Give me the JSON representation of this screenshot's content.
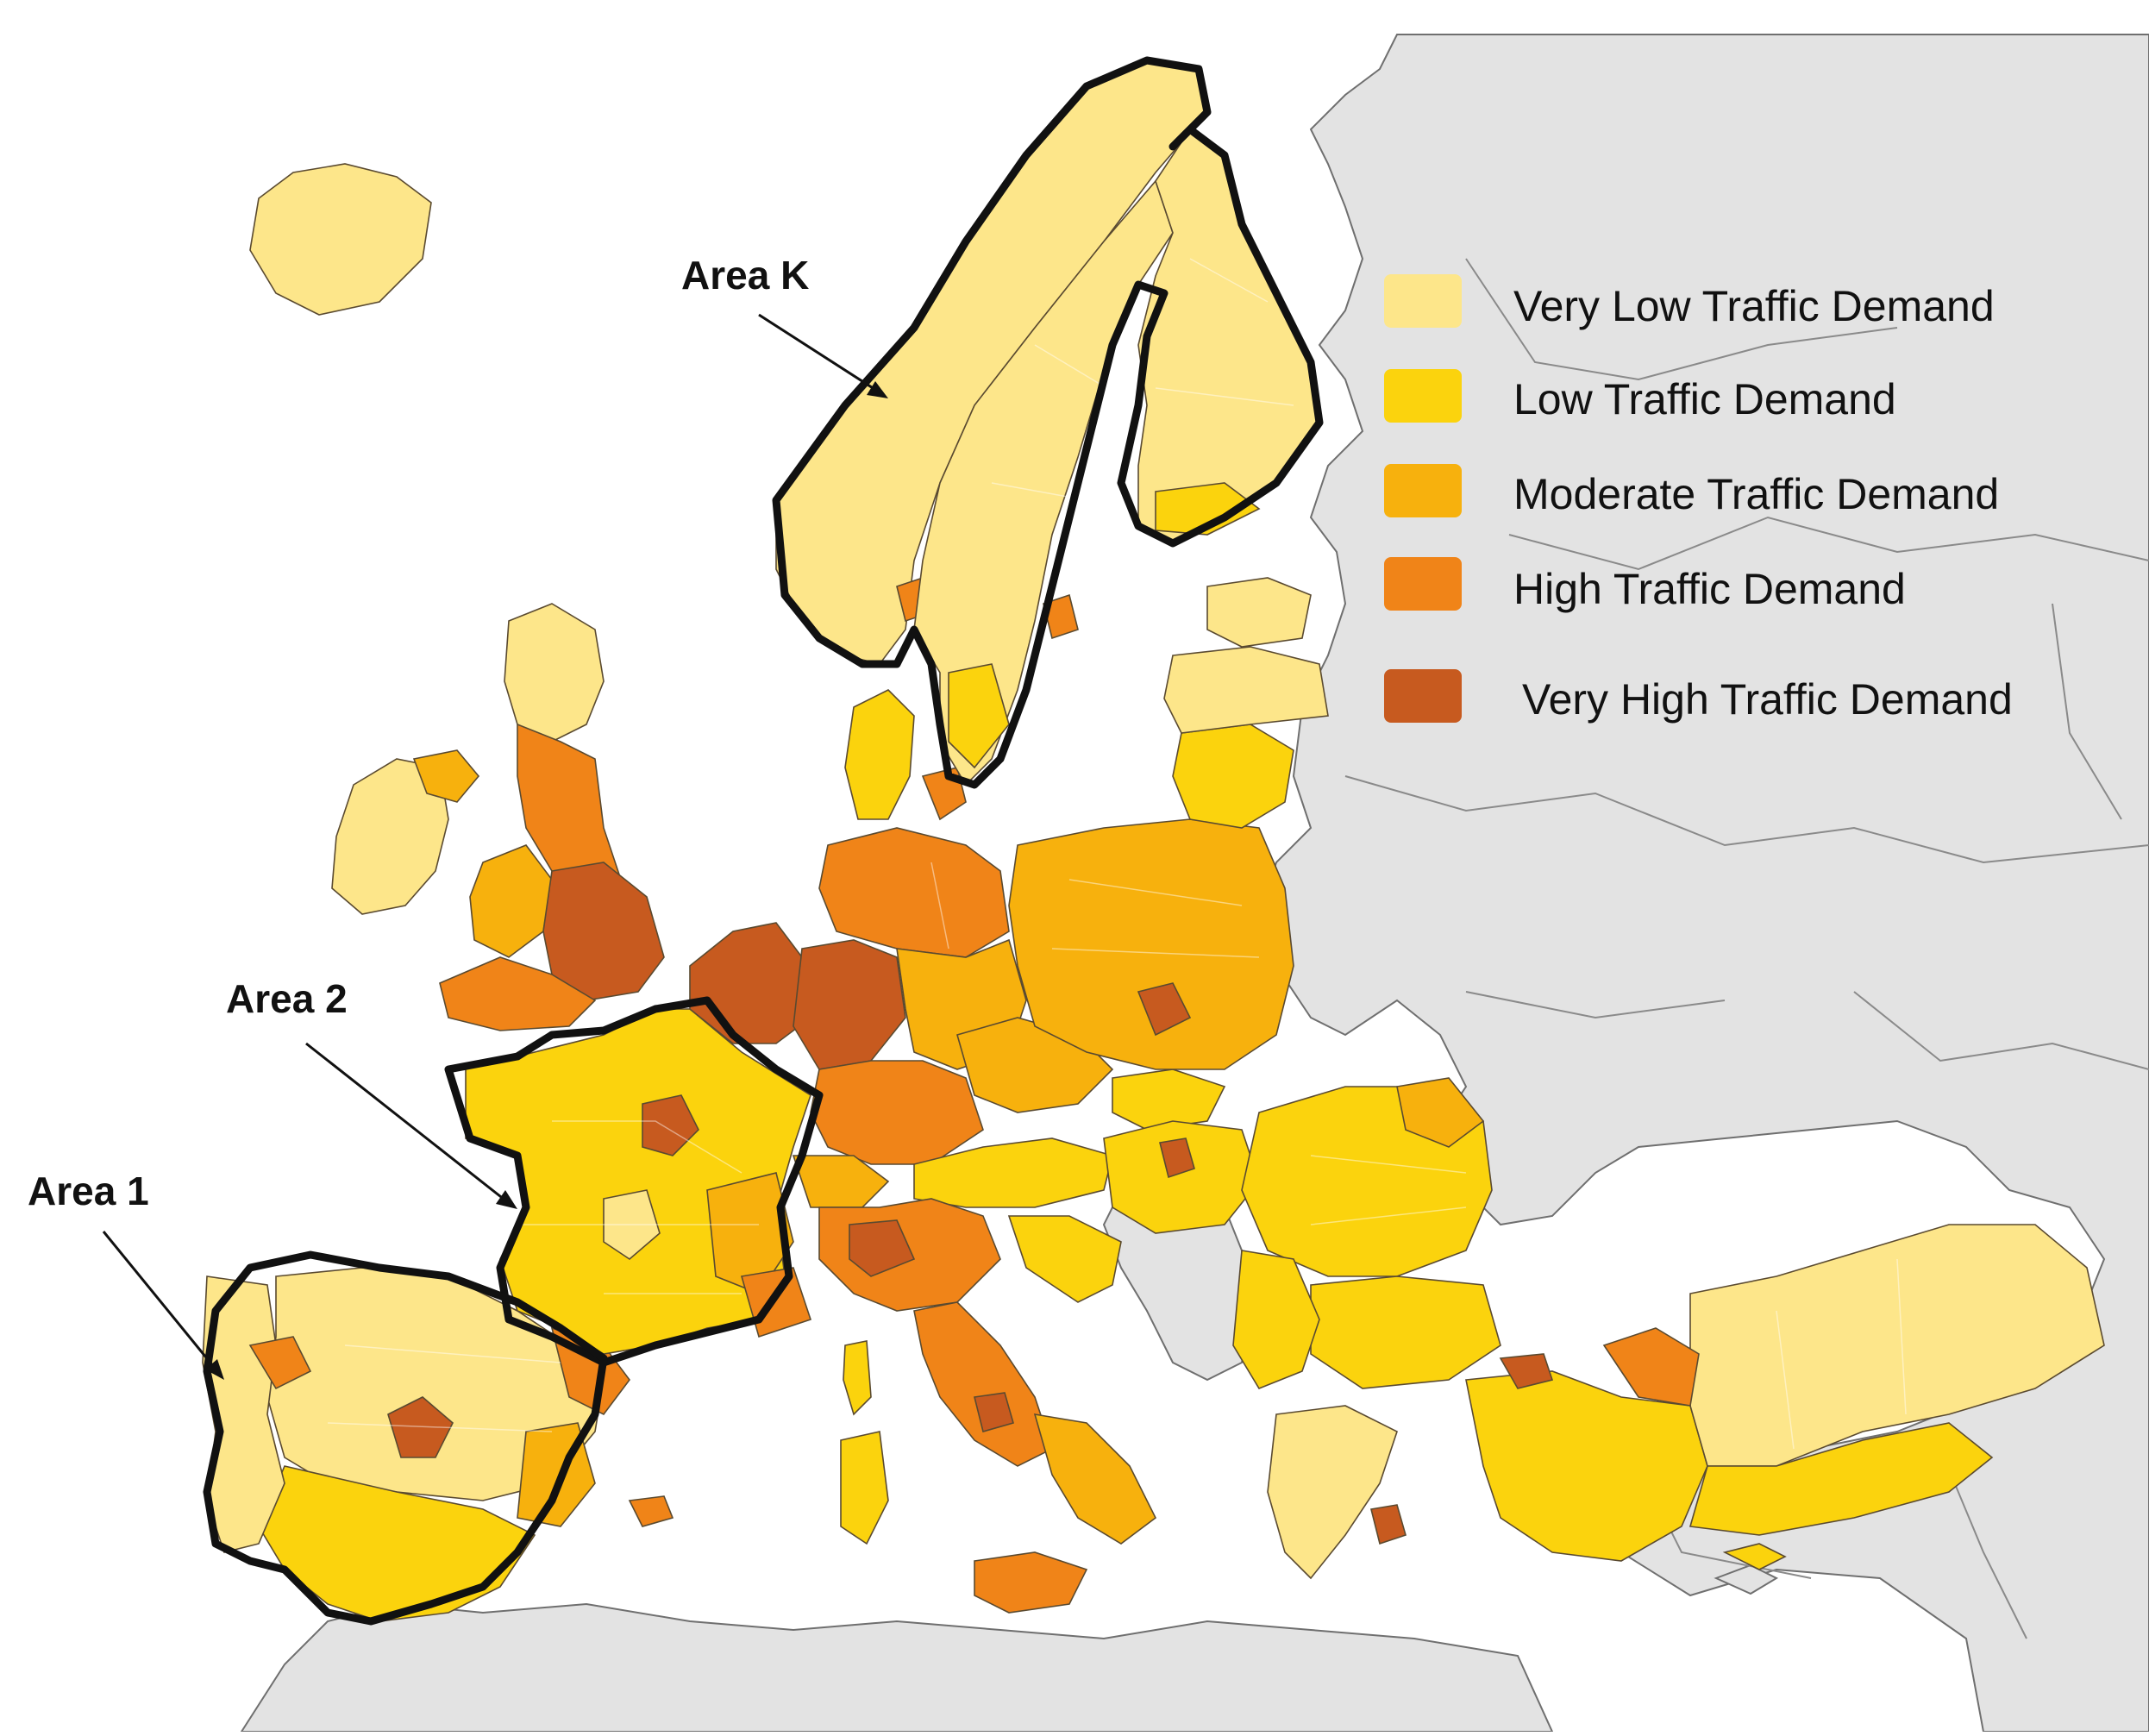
{
  "legend": {
    "items": [
      {
        "label": "Very Low Traffic Demand",
        "color": "#fde68a"
      },
      {
        "label": "Low Traffic Demand",
        "color": "#fbd30d"
      },
      {
        "label": "Moderate Traffic Demand",
        "color": "#f7b10d"
      },
      {
        "label": "High Traffic Demand",
        "color": "#f08418"
      },
      {
        "label": "Very High Traffic Demand",
        "color": "#c75a1f"
      }
    ]
  },
  "areas": {
    "k": {
      "label": "Area K"
    },
    "two": {
      "label": "Area 2"
    },
    "one": {
      "label": "Area 1"
    }
  },
  "colors": {
    "sea": "#ffffff",
    "non_study_land": "#e3e3e3",
    "area_outline": "#111111"
  }
}
